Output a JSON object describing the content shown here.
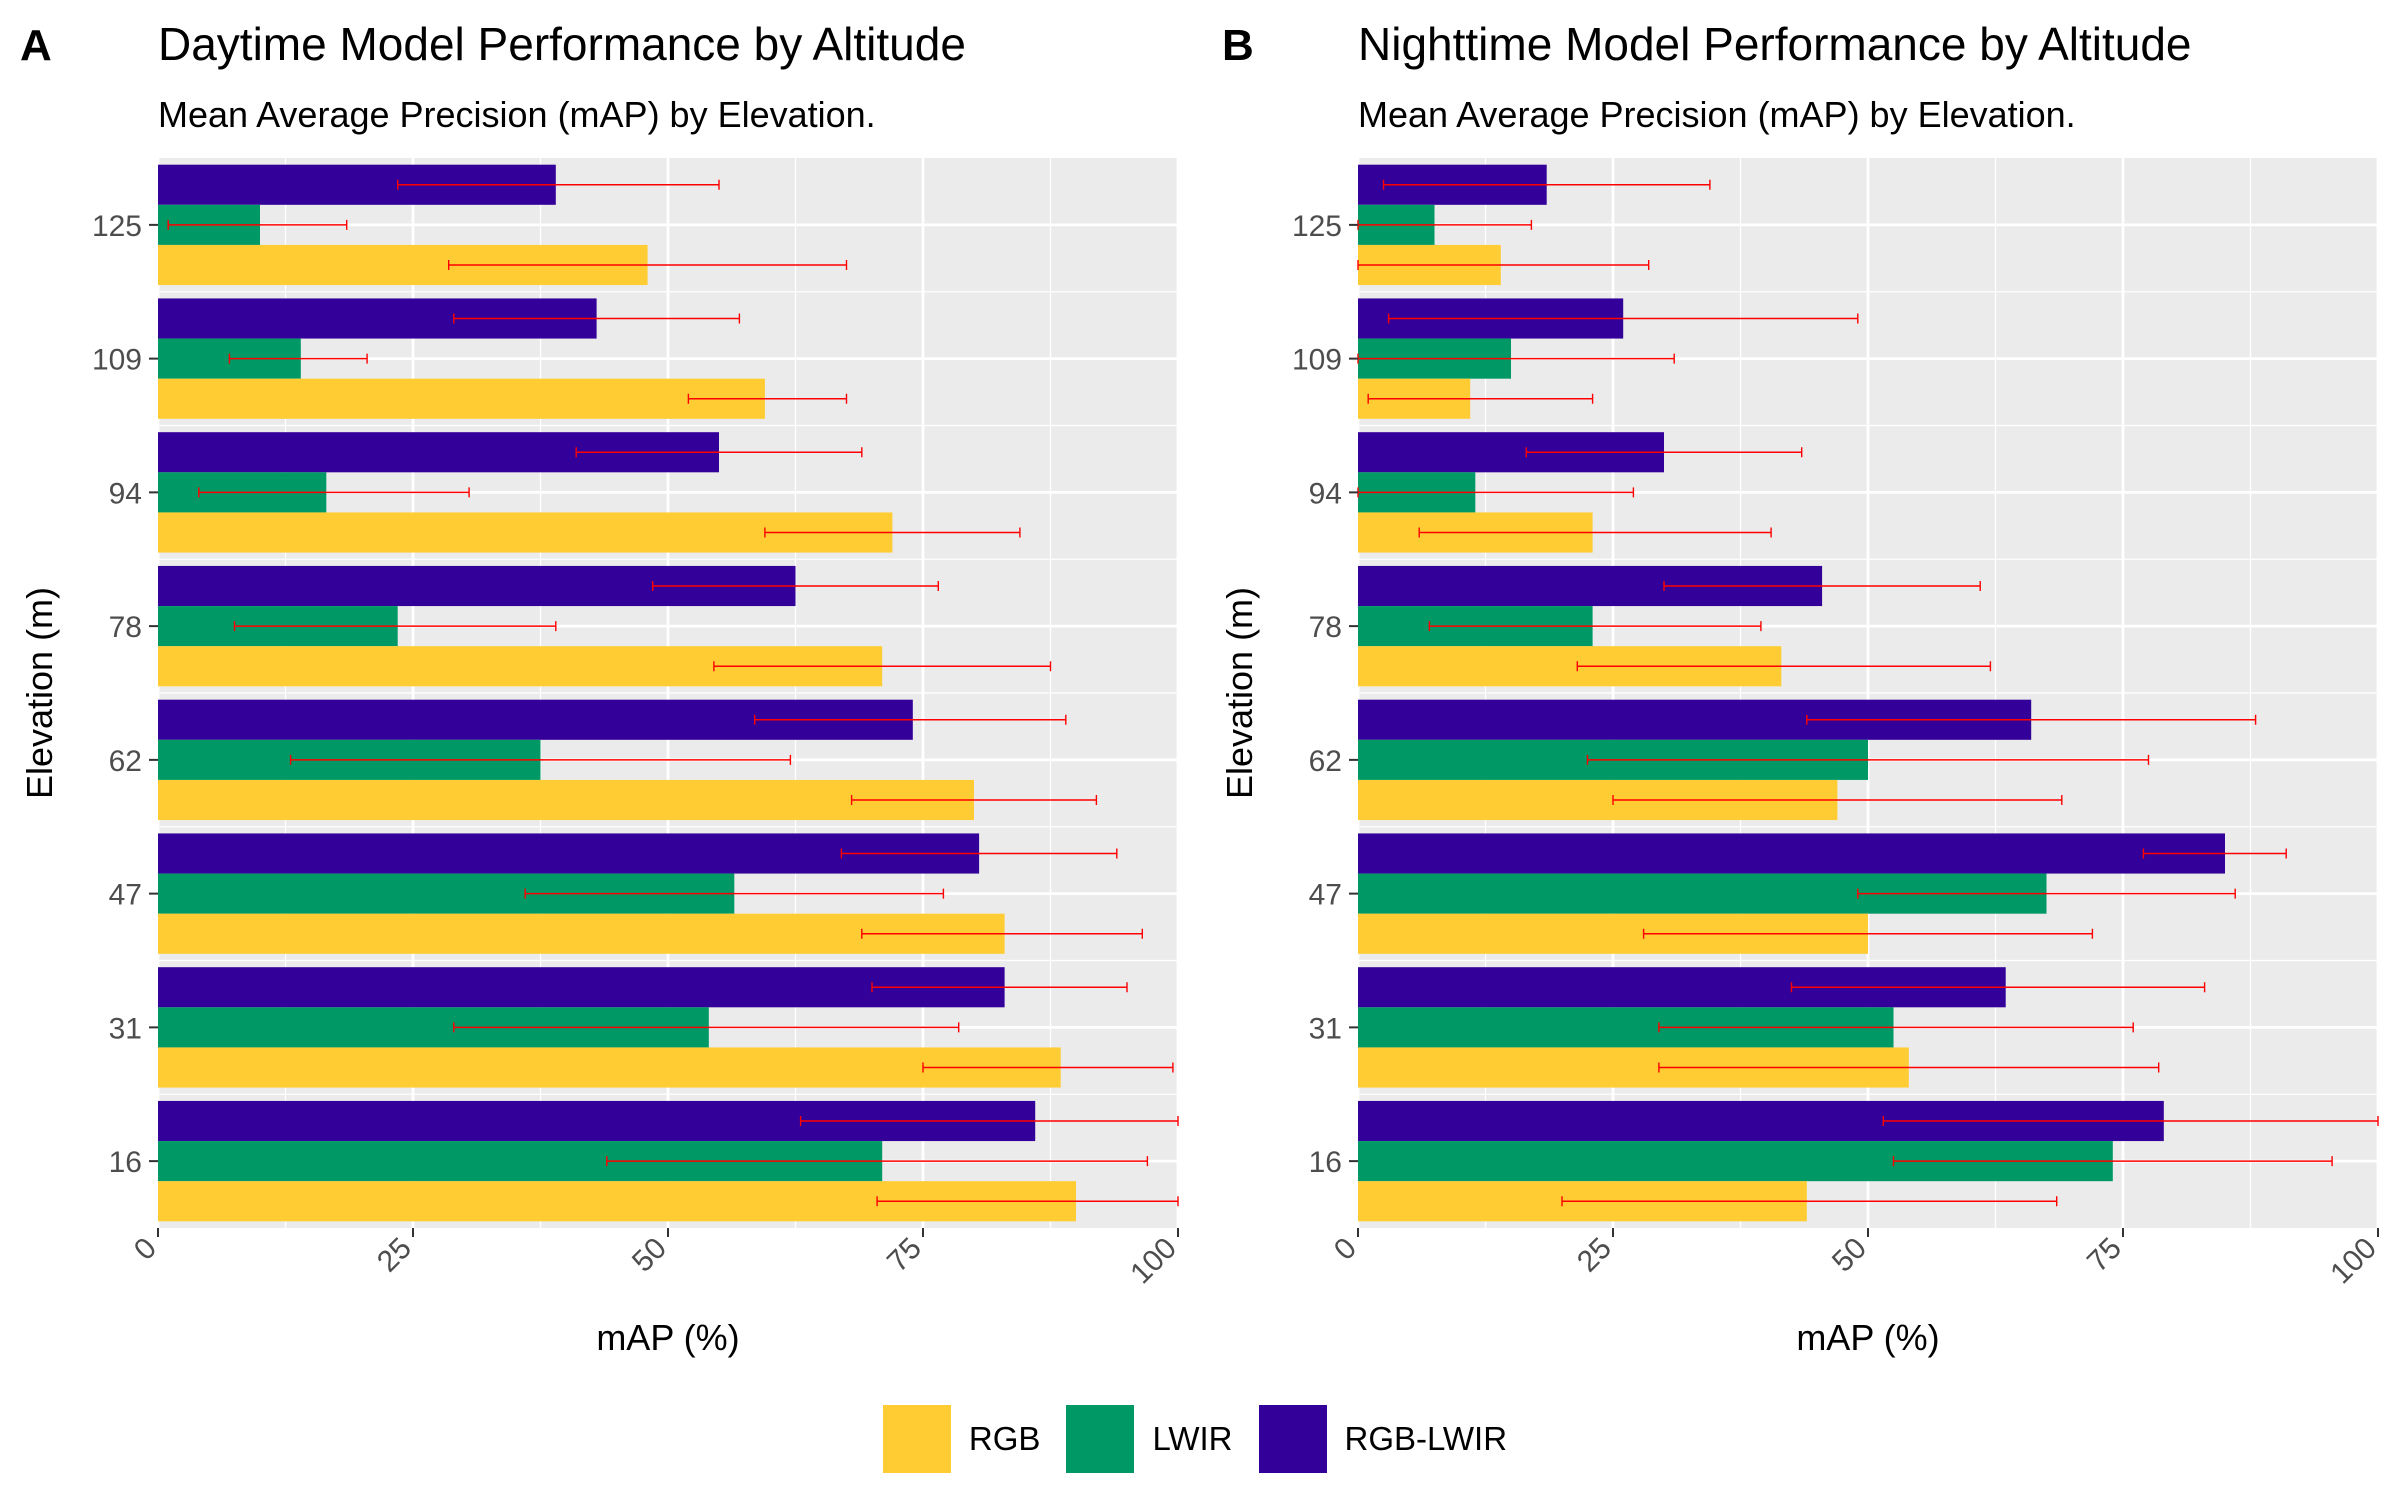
{
  "legend": {
    "items": [
      {
        "label": "RGB",
        "color": "#FFCC33"
      },
      {
        "label": "LWIR",
        "color": "#009966"
      },
      {
        "label": "RGB-LWIR",
        "color": "#330099"
      }
    ]
  },
  "colors": {
    "panel_bg": "#EBEBEB",
    "grid": "#FFFFFF",
    "error_bar": "#FF0000"
  },
  "chart_data": [
    {
      "panel_tag": "A",
      "type": "bar",
      "orientation": "horizontal",
      "title": "Daytime Model Performance by Altitude",
      "subtitle": "Mean Average Precision (mAP) by Elevation.",
      "xlabel": "mAP (%)",
      "ylabel": "Elevation (m)",
      "xlim": [
        0,
        100
      ],
      "xticks": [
        "0",
        "25",
        "50",
        "75",
        "100"
      ],
      "categories": [
        "125",
        "109",
        "94",
        "78",
        "62",
        "47",
        "31",
        "16"
      ],
      "series": [
        {
          "name": "RGB-LWIR",
          "values": [
            39,
            43,
            55,
            62.5,
            74,
            80.5,
            83,
            86
          ],
          "err_low": [
            23.5,
            29,
            41,
            48.5,
            58.5,
            67,
            70,
            63
          ],
          "err_high": [
            55,
            57,
            69,
            76.5,
            89,
            94,
            95,
            100
          ]
        },
        {
          "name": "LWIR",
          "values": [
            10,
            14,
            16.5,
            23.5,
            37.5,
            56.5,
            54,
            71
          ],
          "err_low": [
            1,
            7,
            4,
            7.5,
            13,
            36,
            29,
            44
          ],
          "err_high": [
            18.5,
            20.5,
            30.5,
            39,
            62,
            77,
            78.5,
            97
          ]
        },
        {
          "name": "RGB",
          "values": [
            48,
            59.5,
            72,
            71,
            80,
            83,
            88.5,
            90
          ],
          "err_low": [
            28.5,
            52,
            59.5,
            54.5,
            68,
            69,
            75,
            70.5
          ],
          "err_high": [
            67.5,
            67.5,
            84.5,
            87.5,
            92,
            96.5,
            99.5,
            100
          ]
        }
      ]
    },
    {
      "panel_tag": "B",
      "type": "bar",
      "orientation": "horizontal",
      "title": "Nighttime Model Performance by Altitude",
      "subtitle": "Mean Average Precision (mAP) by Elevation.",
      "xlabel": "mAP (%)",
      "ylabel": "Elevation (m)",
      "xlim": [
        0,
        100
      ],
      "xticks": [
        "0",
        "25",
        "50",
        "75",
        "100"
      ],
      "categories": [
        "125",
        "109",
        "94",
        "78",
        "62",
        "47",
        "31",
        "16"
      ],
      "series": [
        {
          "name": "RGB-LWIR",
          "values": [
            18.5,
            26,
            30,
            45.5,
            66,
            85,
            63.5,
            79
          ],
          "err_low": [
            2.5,
            3,
            16.5,
            30,
            44,
            77,
            42.5,
            51.5
          ],
          "err_high": [
            34.5,
            49,
            43.5,
            61,
            88,
            91,
            83,
            100
          ]
        },
        {
          "name": "LWIR",
          "values": [
            7.5,
            15,
            11.5,
            23,
            50,
            67.5,
            52.5,
            74
          ],
          "err_low": [
            0,
            0,
            0,
            7,
            22.5,
            49,
            29.5,
            52.5
          ],
          "err_high": [
            17,
            31,
            27,
            39.5,
            77.5,
            86,
            76,
            95.5
          ]
        },
        {
          "name": "RGB",
          "values": [
            14,
            11,
            23,
            41.5,
            47,
            50,
            54,
            44
          ],
          "err_low": [
            0,
            1,
            6,
            21.5,
            25,
            28,
            29.5,
            20
          ],
          "err_high": [
            28.5,
            23,
            40.5,
            62,
            69,
            72,
            78.5,
            68.5
          ]
        }
      ]
    }
  ]
}
